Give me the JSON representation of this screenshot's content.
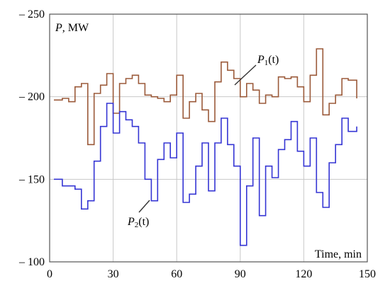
{
  "chart_data": {
    "type": "line",
    "step": true,
    "ylabel": {
      "symbol": "P",
      "unit": ", MW"
    },
    "xlabel": "Time, min",
    "xlim": [
      0,
      150
    ],
    "ylim": [
      100,
      250
    ],
    "xticks": [
      0,
      30,
      60,
      90,
      120,
      150
    ],
    "yticks": [
      100,
      150,
      200,
      250
    ],
    "ytick_prefix": "– ",
    "grid": true,
    "series": [
      {
        "name": "P1(t)",
        "label_main": "P",
        "label_sub": "1",
        "label_tail": "(t)",
        "color": "#9b5a3a",
        "x": [
          2,
          6,
          9,
          12,
          15,
          18,
          21,
          24,
          27,
          30,
          33,
          36,
          39,
          42,
          45,
          48,
          51,
          54,
          57,
          60,
          63,
          66,
          69,
          72,
          75,
          78,
          81,
          84,
          87,
          90,
          93,
          96,
          99,
          102,
          105,
          108,
          111,
          114,
          117,
          120,
          123,
          126,
          129,
          132,
          135,
          138,
          141,
          145
        ],
        "y": [
          198,
          199,
          197,
          206,
          208,
          171,
          202,
          207,
          214,
          190,
          208,
          211,
          213,
          208,
          201,
          200,
          199,
          197,
          201,
          213,
          187,
          197,
          202,
          192,
          185,
          209,
          221,
          216,
          211,
          200,
          208,
          204,
          196,
          201,
          200,
          212,
          211,
          212,
          206,
          197,
          213,
          229,
          189,
          196,
          201,
          211,
          210,
          199
        ]
      },
      {
        "name": "P2(t)",
        "label_main": "P",
        "label_sub": "2",
        "label_tail": "(t)",
        "color": "#3535d4",
        "x": [
          2,
          6,
          9,
          12,
          15,
          18,
          21,
          24,
          27,
          30,
          33,
          36,
          39,
          42,
          45,
          48,
          51,
          54,
          57,
          60,
          63,
          66,
          69,
          72,
          75,
          78,
          81,
          84,
          87,
          90,
          93,
          96,
          99,
          102,
          105,
          108,
          111,
          114,
          117,
          120,
          123,
          126,
          129,
          132,
          135,
          138,
          141,
          145
        ],
        "y": [
          150,
          146,
          146,
          144,
          132,
          137,
          161,
          182,
          196,
          178,
          191,
          186,
          182,
          172,
          150,
          137,
          162,
          172,
          163,
          178,
          136,
          141,
          158,
          172,
          143,
          172,
          187,
          171,
          158,
          110,
          146,
          175,
          128,
          158,
          151,
          168,
          174,
          185,
          167,
          158,
          175,
          142,
          133,
          160,
          171,
          187,
          179,
          182
        ]
      }
    ]
  }
}
